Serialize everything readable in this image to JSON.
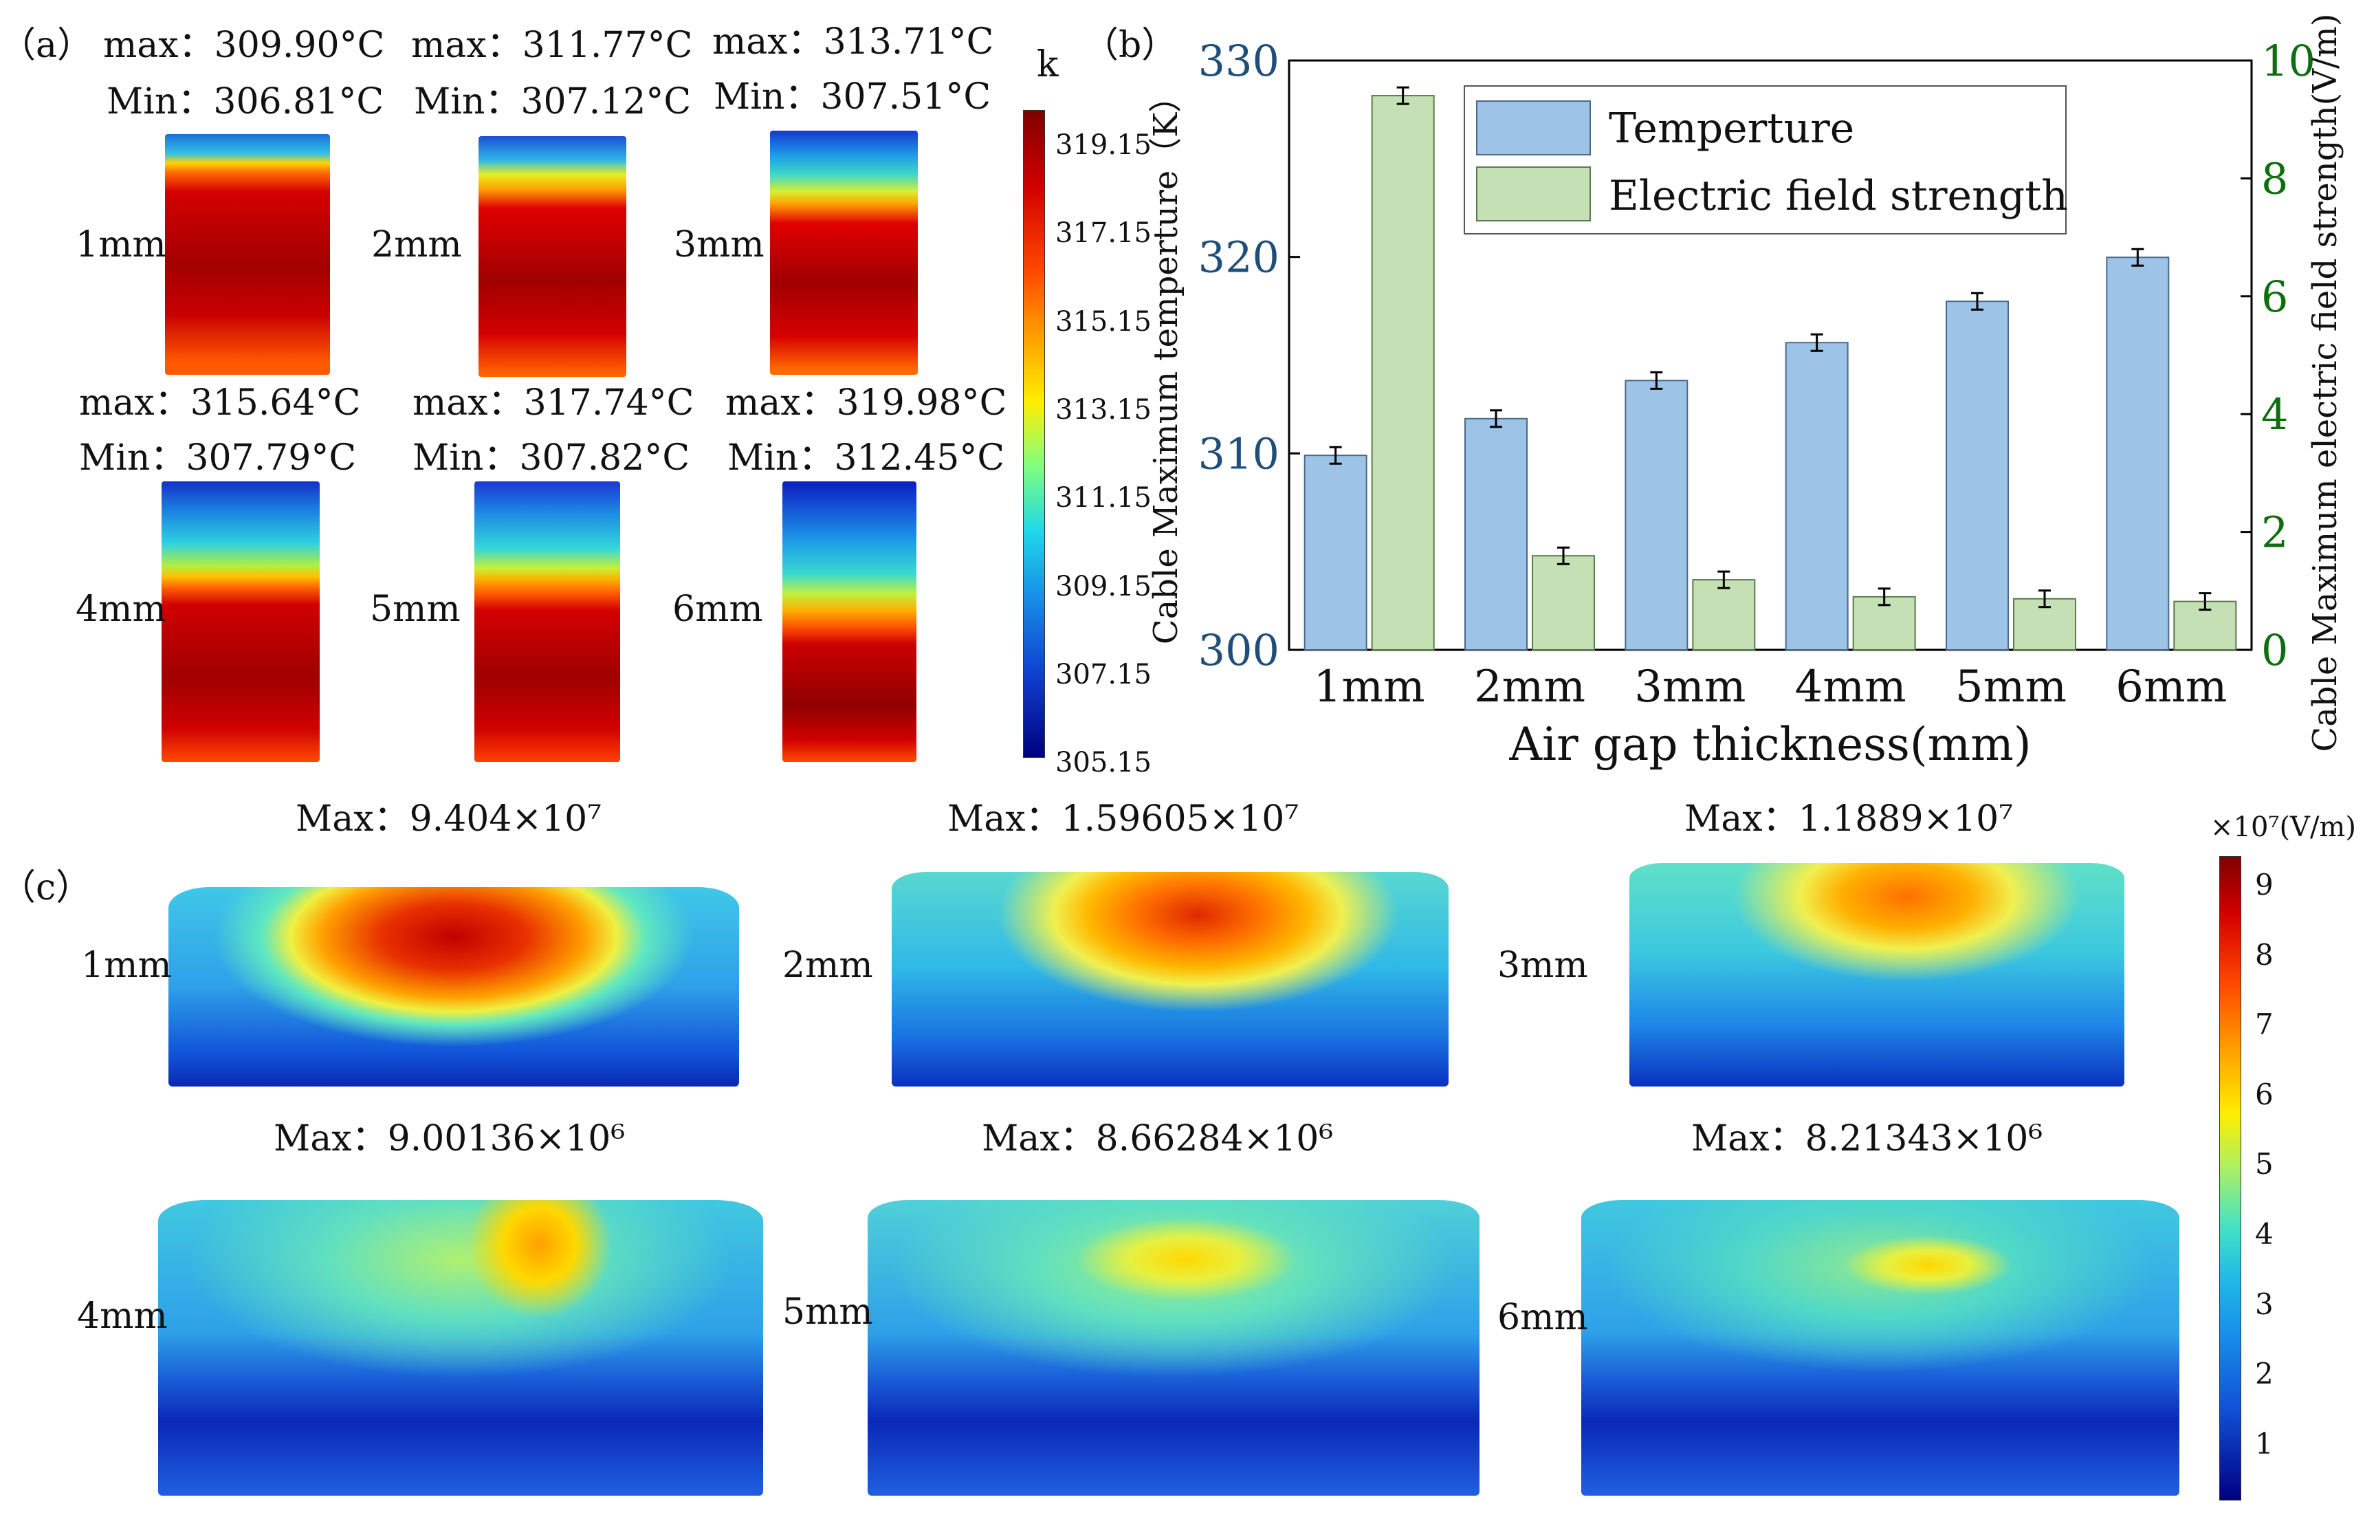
{
  "panel_a": {
    "label": "（a）",
    "unit": "k",
    "colorbar_ticks": [
      "319.15",
      "317.15",
      "315.15",
      "313.15",
      "311.15",
      "309.15",
      "307.15",
      "305.15"
    ],
    "max_prefix": "max：",
    "min_prefix": "Min：",
    "items": [
      {
        "gap": "1mm",
        "max": "309.90°C",
        "min": "306.81°C"
      },
      {
        "gap": "2mm",
        "max": "311.77°C",
        "min": "307.12°C"
      },
      {
        "gap": "3mm",
        "max": "313.71°C",
        "min": "307.51°C"
      },
      {
        "gap": "4mm",
        "max": "315.64°C",
        "min": "307.79°C"
      },
      {
        "gap": "5mm",
        "max": "317.74°C",
        "min": "307.82°C"
      },
      {
        "gap": "6mm",
        "max": "319.98°C",
        "min": "312.45°C"
      }
    ]
  },
  "panel_b": {
    "label": "（b）"
  },
  "panel_c": {
    "label": "（c）",
    "unit": "×10⁷(V/m)",
    "colorbar_ticks": [
      "9",
      "8",
      "7",
      "6",
      "5",
      "4",
      "3",
      "2",
      "1"
    ],
    "max_prefix": "Max：",
    "items": [
      {
        "gap": "1mm",
        "max": "9.404×10⁷"
      },
      {
        "gap": "2mm",
        "max": "1.59605×10⁷"
      },
      {
        "gap": "3mm",
        "max": "1.1889×10⁷"
      },
      {
        "gap": "4mm",
        "max": "9.00136×10⁶"
      },
      {
        "gap": "5mm",
        "max": "8.66284×10⁶"
      },
      {
        "gap": "6mm",
        "max": "8.21343×10⁶"
      }
    ]
  },
  "colors": {
    "temp_bar": "#9dc3e6",
    "field_bar": "#c5e0b4",
    "left_axis": "#1f4e79",
    "right_axis": "#0d6e0d"
  },
  "chart_data": {
    "type": "bar",
    "title": "",
    "categories": [
      "1mm",
      "2mm",
      "3mm",
      "4mm",
      "5mm",
      "6mm"
    ],
    "xlabel": "Air gap thickness(mm)",
    "ylabel": "Cable Maximum temperture（K）",
    "ylabel_right": "Cable Maximum electric field strength(V/m)",
    "ylim": [
      300,
      330
    ],
    "yticks": [
      300,
      310,
      320,
      330
    ],
    "ylim_right": [
      0,
      10
    ],
    "yticks_right": [
      0,
      2,
      4,
      6,
      8,
      10
    ],
    "legend_position": "top-center",
    "series": [
      {
        "name": "Temperture",
        "axis": "left",
        "values": [
          309.9,
          311.77,
          313.71,
          315.64,
          317.74,
          319.98
        ]
      },
      {
        "name": "Electric field strength",
        "axis": "right",
        "values": [
          9.404,
          1.596,
          1.189,
          0.9,
          0.866,
          0.821
        ]
      }
    ]
  }
}
